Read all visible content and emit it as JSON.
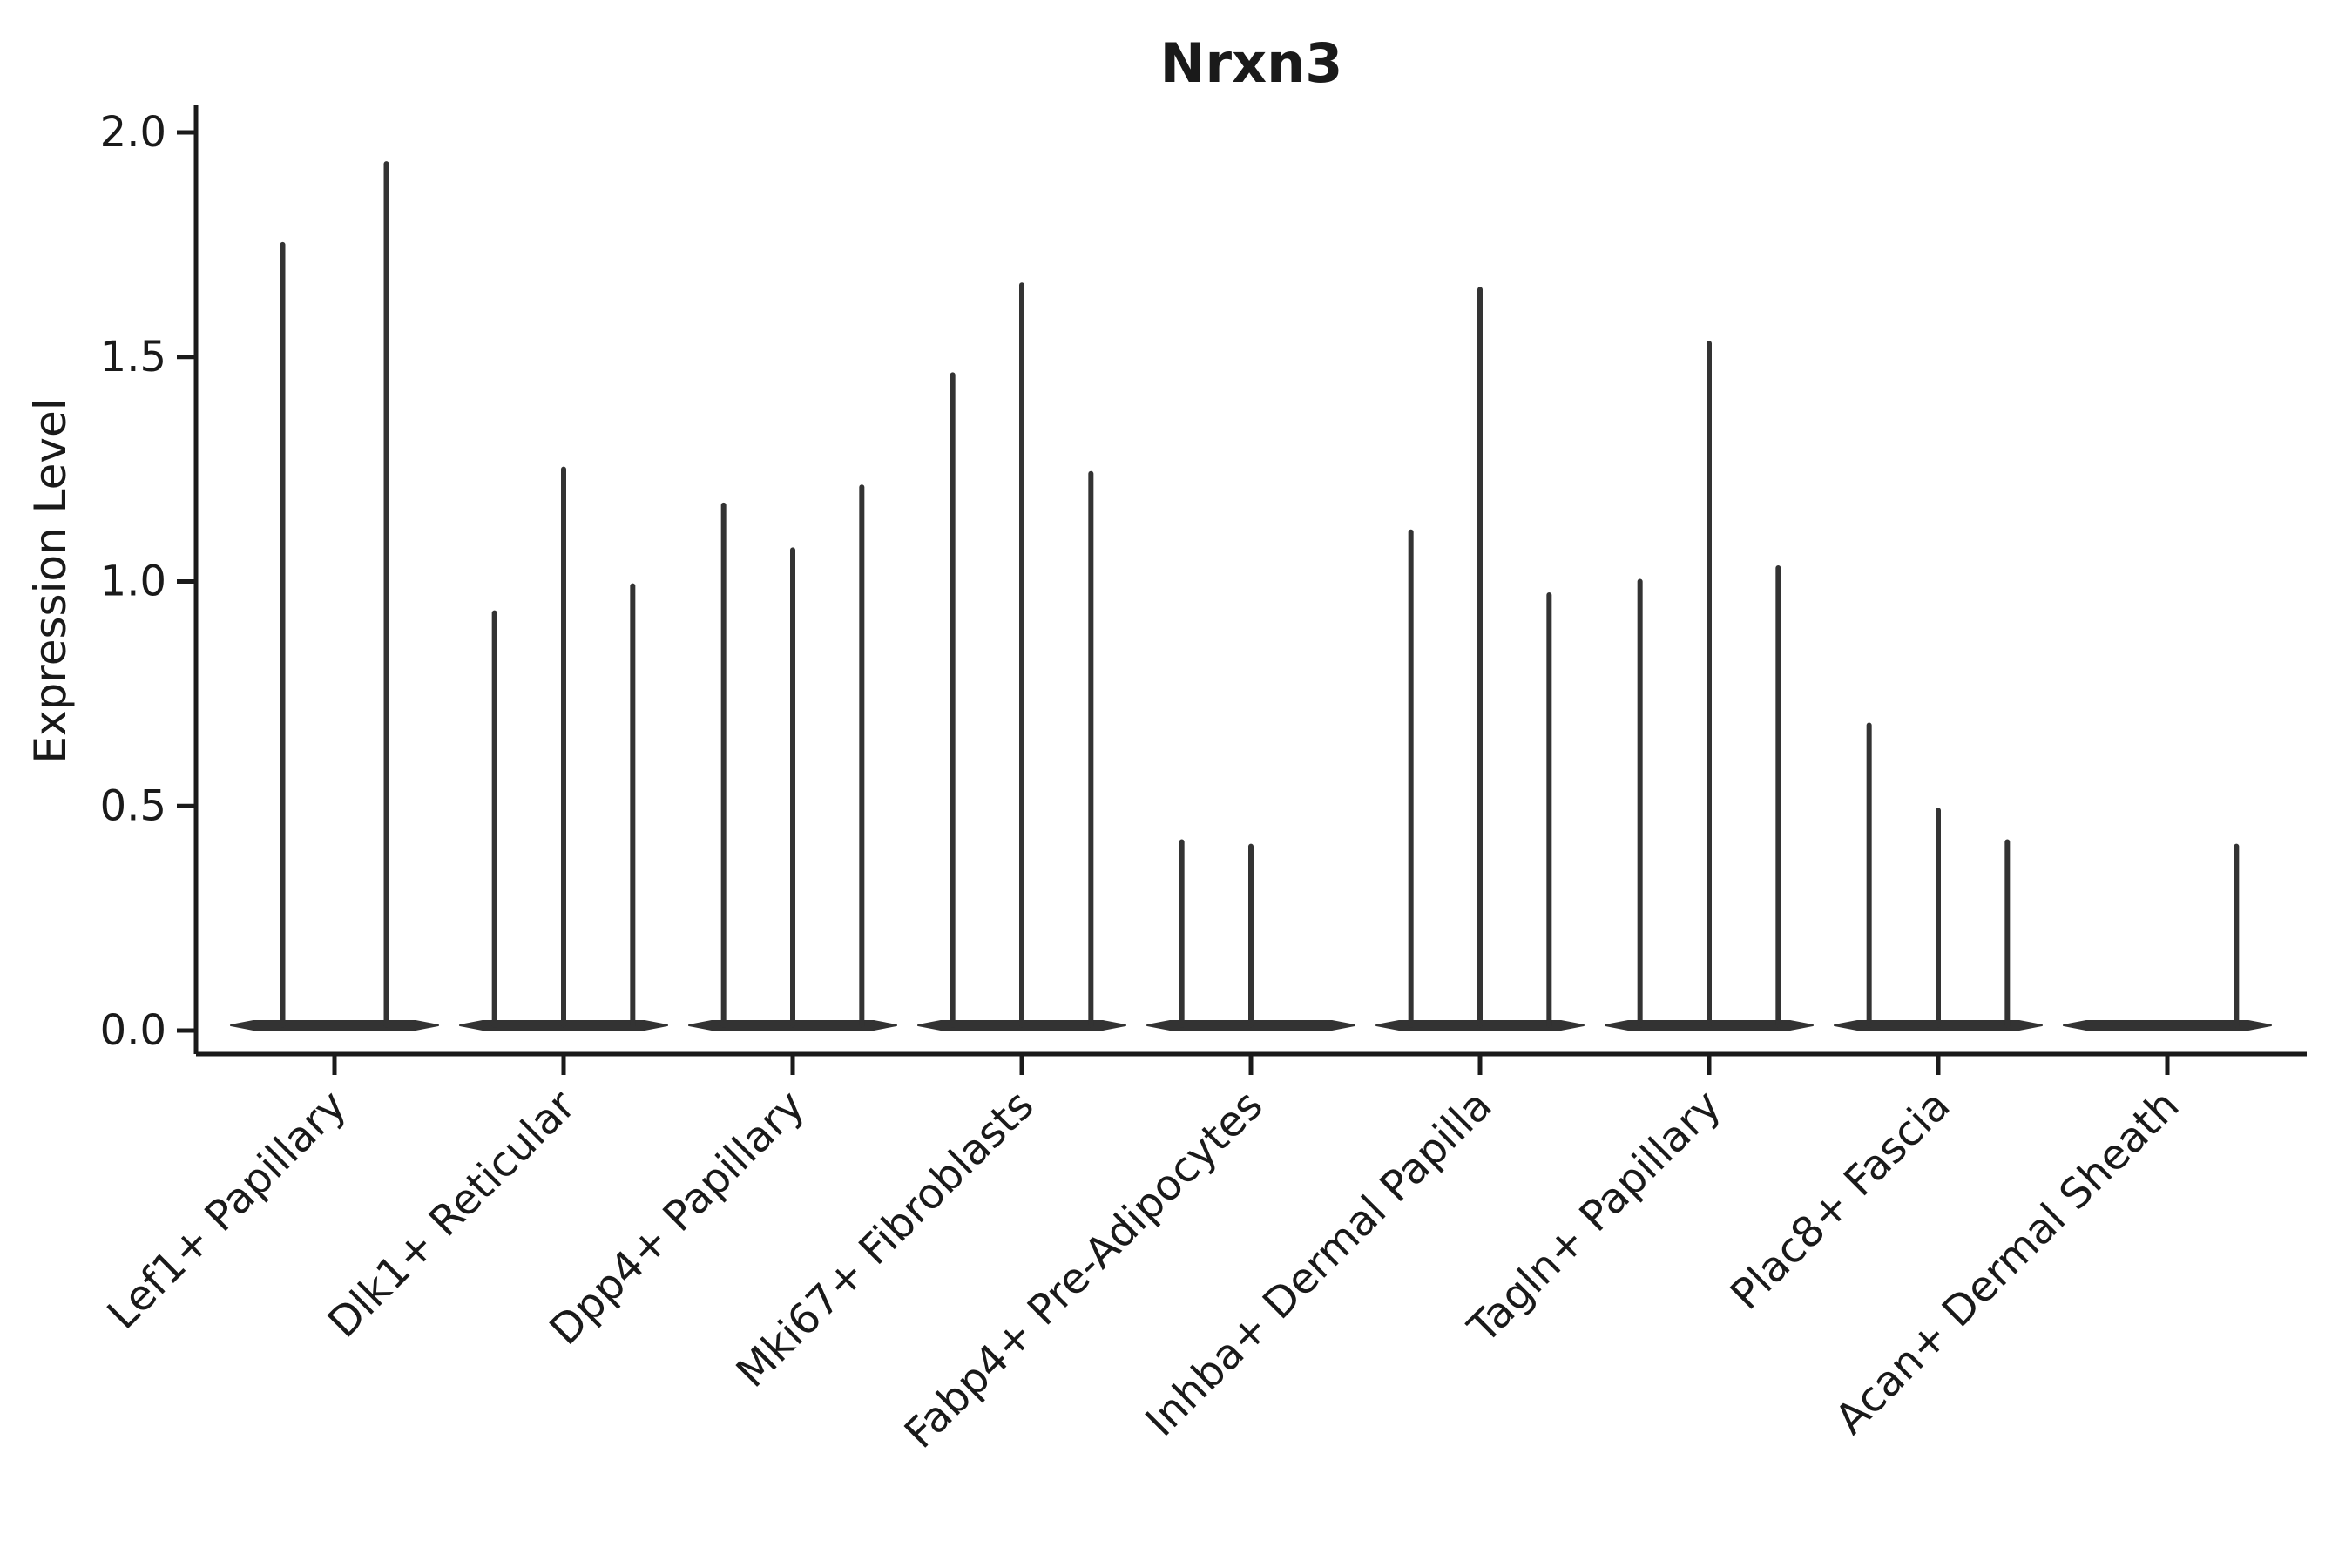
{
  "title": "Nrxn3",
  "axes": {
    "y_label": "Expression Level",
    "y_tick_labels": [
      "0.0",
      "0.5",
      "1.0",
      "1.5",
      "2.0"
    ]
  },
  "colors": {
    "violin": "#333333",
    "axis": "#1a1a1a",
    "background": "#ffffff"
  },
  "chart_data": {
    "type": "violin",
    "title": "Nrxn3",
    "xlabel": "",
    "ylabel": "Expression Level",
    "ylim": [
      0,
      2.0
    ],
    "y_ticks": [
      0,
      0.5,
      1.0,
      1.5,
      2.0
    ],
    "grid": false,
    "legend": null,
    "categories": [
      "Lef1+ Papillary",
      "Dlk1+ Reticular",
      "Dpp4+ Papillary",
      "Mki67+ Fibroblasts",
      "Fabp4+ Pre-Adipocytes",
      "Inhba+ Dermal Papilla",
      "Tagln+ Papillary",
      "Plac8+ Fascia",
      "Acan+ Dermal Sheath"
    ],
    "groups": [
      {
        "category": "Lef1+ Papillary",
        "violin_max_values": [
          1.75,
          1.93
        ]
      },
      {
        "category": "Dlk1+ Reticular",
        "violin_max_values": [
          0.93,
          1.25,
          0.99
        ]
      },
      {
        "category": "Dpp4+ Papillary",
        "violin_max_values": [
          1.17,
          1.07,
          1.21
        ]
      },
      {
        "category": "Mki67+ Fibroblasts",
        "violin_max_values": [
          1.46,
          1.66,
          1.24
        ]
      },
      {
        "category": "Fabp4+ Pre-Adipocytes",
        "violin_max_values": [
          0.42,
          0.41,
          0
        ]
      },
      {
        "category": "Inhba+ Dermal Papilla",
        "violin_max_values": [
          1.11,
          1.65,
          0.97
        ]
      },
      {
        "category": "Tagln+ Papillary",
        "violin_max_values": [
          1.0,
          1.53,
          1.03
        ]
      },
      {
        "category": "Plac8+ Fascia",
        "violin_max_values": [
          0.68,
          0.49,
          0.42
        ]
      },
      {
        "category": "Acan+ Dermal Sheath",
        "violin_max_values": [
          0,
          0,
          0.41
        ]
      }
    ],
    "description": "Violin plot of Nrxn3 expression; most density at 0 with thin spikes to each violin maximum"
  }
}
